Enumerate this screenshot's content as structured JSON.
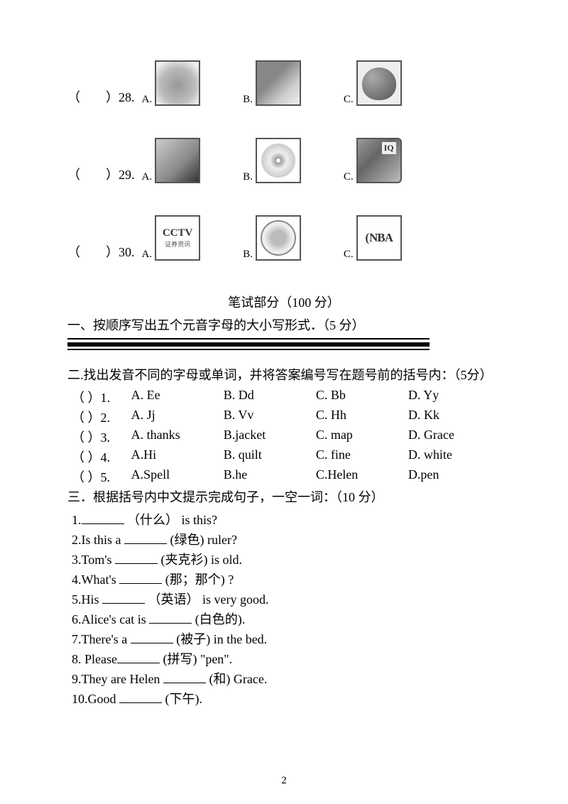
{
  "imageQuestions": [
    {
      "num": "28.",
      "opts": [
        {
          "label": "A.",
          "img": "orange"
        },
        {
          "label": "B.",
          "img": "peach"
        },
        {
          "label": "C.",
          "img": "apple"
        }
      ]
    },
    {
      "num": "29.",
      "opts": [
        {
          "label": "A.",
          "img": "pen"
        },
        {
          "label": "B.",
          "img": "cd"
        },
        {
          "label": "C.",
          "img": "book"
        }
      ]
    },
    {
      "num": "30.",
      "opts": [
        {
          "label": "A.",
          "img": "logo",
          "text": "CCTV",
          "sub": "证券资讯"
        },
        {
          "label": "B.",
          "img": "un"
        },
        {
          "label": "C.",
          "img": "nba",
          "text": "NBA"
        }
      ]
    }
  ],
  "sectionTitle": "笔试部分（100 分）",
  "s1": {
    "title": "一、按顺序写出五个元音字母的大小写形式．（5 分）"
  },
  "s2": {
    "title": "二.找出发音不同的字母或单词，并将答案编号写在题号前的括号内：（5分）",
    "rows": [
      {
        "n": "1.",
        "a": "A. Ee",
        "b": "B. Dd",
        "c": "C. Bb",
        "d": "D. Yy"
      },
      {
        "n": "2.",
        "a": "A. Jj",
        "b": "B. Vv",
        "c": "C. Hh",
        "d": "D. Kk"
      },
      {
        "n": "3.",
        "a": "A. thanks",
        "b": "B.jacket",
        "c": "C. map",
        "d": "D. Grace"
      },
      {
        "n": "4.",
        "a": "A.Hi",
        "b": "B. quilt",
        "c": "C. fine",
        "d": "D. white"
      },
      {
        "n": "5.",
        "a": "A.Spell",
        "b": "B.he",
        "c": "C.Helen",
        "d": "D.pen"
      }
    ]
  },
  "s3": {
    "title": "三．根据括号内中文提示完成句子，一空一词：（10 分）",
    "items": [
      {
        "n": "1.",
        "pre": "",
        "hint": "（什么）",
        "post": " is this?"
      },
      {
        "n": "2.",
        "pre": "Is this a  ",
        "hint": "(绿色)",
        "post": " ruler?"
      },
      {
        "n": "3.",
        "pre": "Tom's  ",
        "hint": "(夹克衫)",
        "post": " is old."
      },
      {
        "n": "4.",
        "pre": "What's   ",
        "hint": "(那；那个)",
        "post": " ?"
      },
      {
        "n": "5.",
        "pre": "His  ",
        "hint": "（英语）",
        "post": " is very good."
      },
      {
        "n": "6.",
        "pre": "Alice's cat is ",
        "hint": "(白色的)",
        "post": "."
      },
      {
        "n": "7.",
        "pre": "There's a ",
        "hint": "(被子)",
        "post": " in the bed."
      },
      {
        "n": "8.",
        "pre": " Please",
        "hint": "(拼写)",
        "post": " \"pen\"."
      },
      {
        "n": "9.",
        "pre": "They are Helen ",
        "hint": "(和)",
        "post": " Grace."
      },
      {
        "n": "10.",
        "pre": "Good ",
        "hint": "(下午)",
        "post": "."
      }
    ]
  },
  "parenOpen": "（",
  "parenClose": "）",
  "pageNum": "2"
}
